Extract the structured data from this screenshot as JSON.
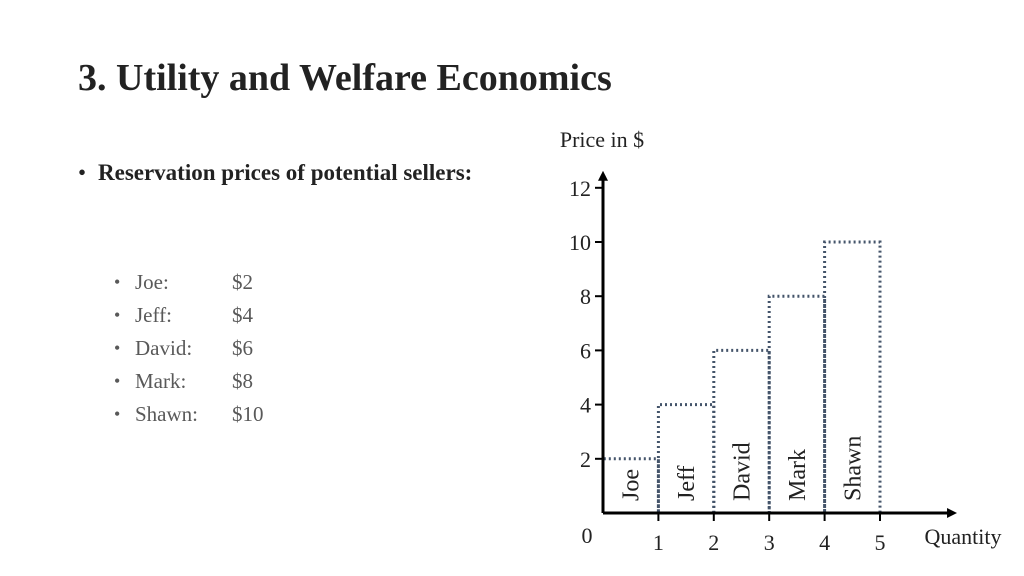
{
  "slide": {
    "title": "3. Utility and Welfare Economics",
    "bullet": "Reservation prices of potential sellers:",
    "sellers": [
      {
        "name": "Joe:",
        "price": "$2"
      },
      {
        "name": "Jeff:",
        "price": "$4"
      },
      {
        "name": "David:",
        "price": "$6"
      },
      {
        "name": "Mark:",
        "price": "$8"
      },
      {
        "name": "Shawn:",
        "price": "$10"
      }
    ]
  },
  "chart_data": {
    "type": "bar",
    "categories": [
      "Joe",
      "Jeff",
      "David",
      "Mark",
      "Shawn"
    ],
    "values": [
      2,
      4,
      6,
      8,
      10
    ],
    "ylabel": "Price in $",
    "xlabel": "Quantity",
    "origin_label": "0",
    "xticks": [
      "1",
      "2",
      "3",
      "4",
      "5"
    ],
    "yticks": [
      "2",
      "4",
      "6",
      "8",
      "10",
      "12"
    ],
    "xlim": [
      0,
      6.3
    ],
    "ylim": [
      0,
      12
    ],
    "grid": false,
    "bar_style": "dotted outline",
    "bar_color": "#44546A",
    "axis_color": "#000000"
  }
}
